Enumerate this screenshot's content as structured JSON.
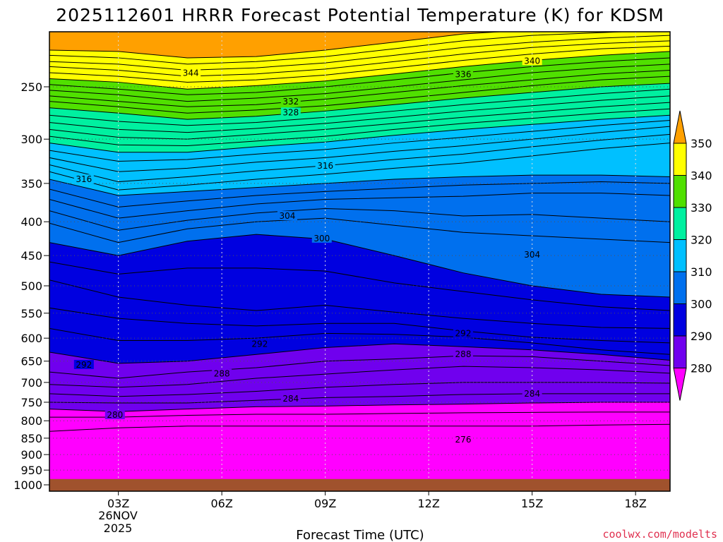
{
  "chart_data": {
    "type": "contour",
    "title": "2025112601 HRRR Forecast Potential Temperature (K) for KDSM",
    "xlabel": "Forecast Time (UTC)",
    "ylabel": "",
    "credit": "coolwx.com/modelts",
    "x_ticks": [
      {
        "label": "03Z",
        "hour": 3
      },
      {
        "label": "06Z",
        "hour": 6
      },
      {
        "label": "09Z",
        "hour": 9
      },
      {
        "label": "12Z",
        "hour": 12
      },
      {
        "label": "15Z",
        "hour": 15
      },
      {
        "label": "18Z",
        "hour": 18
      }
    ],
    "x_date_label": [
      "26NOV",
      "2025"
    ],
    "x_range_hours": [
      1,
      19
    ],
    "y_ticks_hpa": [
      250,
      300,
      350,
      400,
      450,
      500,
      550,
      600,
      650,
      700,
      750,
      800,
      850,
      900,
      950,
      1000
    ],
    "y_range_hpa": [
      200,
      1000
    ],
    "surface_pressure_hpa": 980,
    "colorbar": {
      "ticks": [
        280,
        290,
        300,
        310,
        320,
        330,
        340,
        350
      ],
      "bins": [
        {
          "range": [
            270,
            280
          ],
          "color": "#ff00ff"
        },
        {
          "range": [
            280,
            290
          ],
          "color": "#7000ee"
        },
        {
          "range": [
            290,
            300
          ],
          "color": "#0000e0"
        },
        {
          "range": [
            300,
            310
          ],
          "color": "#0070ee"
        },
        {
          "range": [
            310,
            320
          ],
          "color": "#00c0ff"
        },
        {
          "range": [
            320,
            330
          ],
          "color": "#00f0a0"
        },
        {
          "range": [
            330,
            340
          ],
          "color": "#50e000"
        },
        {
          "range": [
            340,
            350
          ],
          "color": "#ffff00"
        },
        {
          "range": [
            350,
            360
          ],
          "color": "#ffa000"
        }
      ]
    },
    "contour_interval_k": 2,
    "contour_labels": [
      {
        "value": "344",
        "hour": 5.1,
        "p": 239
      },
      {
        "value": "340",
        "hour": 15.0,
        "p": 229
      },
      {
        "value": "336",
        "hour": 13.0,
        "p": 240
      },
      {
        "value": "332",
        "hour": 8.0,
        "p": 264
      },
      {
        "value": "328",
        "hour": 8.0,
        "p": 274
      },
      {
        "value": "316",
        "hour": 9.0,
        "p": 330
      },
      {
        "value": "316",
        "hour": 2.0,
        "p": 346
      },
      {
        "value": "304",
        "hour": 7.9,
        "p": 393
      },
      {
        "value": "300",
        "hour": 8.9,
        "p": 425
      },
      {
        "value": "304",
        "hour": 15.0,
        "p": 450
      },
      {
        "value": "292",
        "hour": 13.0,
        "p": 592
      },
      {
        "value": "292",
        "hour": 7.1,
        "p": 614
      },
      {
        "value": "292",
        "hour": 2.0,
        "p": 660
      },
      {
        "value": "288",
        "hour": 13.0,
        "p": 636
      },
      {
        "value": "288",
        "hour": 6.0,
        "p": 681
      },
      {
        "value": "284",
        "hour": 15.0,
        "p": 730
      },
      {
        "value": "284",
        "hour": 8.0,
        "p": 743
      },
      {
        "value": "280",
        "hour": 2.9,
        "p": 786
      },
      {
        "value": "276",
        "hour": 13.0,
        "p": 857
      }
    ],
    "isotherms_hpa": {
      "hours": [
        1,
        3,
        5,
        7,
        9,
        11,
        13,
        15,
        17,
        19
      ],
      "levels": [
        {
          "theta": 350,
          "p": [
            220,
            221,
            226,
            225,
            220,
            214,
            208,
            205,
            203,
            201
          ]
        },
        {
          "theta": 348,
          "p": [
            224,
            226,
            231,
            229,
            225,
            219,
            213,
            209,
            207,
            205
          ]
        },
        {
          "theta": 346,
          "p": [
            229,
            231,
            236,
            234,
            230,
            224,
            218,
            214,
            211,
            209
          ]
        },
        {
          "theta": 344,
          "p": [
            233,
            236,
            241,
            239,
            235,
            229,
            223,
            218,
            215,
            213
          ]
        },
        {
          "theta": 342,
          "p": [
            238,
            241,
            246,
            244,
            240,
            234,
            228,
            223,
            219,
            217
          ]
        },
        {
          "theta": 340,
          "p": [
            243,
            246,
            252,
            249,
            245,
            239,
            233,
            228,
            224,
            221
          ]
        },
        {
          "theta": 338,
          "p": [
            248,
            252,
            257,
            255,
            250,
            244,
            238,
            233,
            229,
            226
          ]
        },
        {
          "theta": 336,
          "p": [
            253,
            257,
            263,
            260,
            256,
            250,
            244,
            238,
            234,
            231
          ]
        },
        {
          "theta": 334,
          "p": [
            258,
            263,
            268,
            266,
            261,
            255,
            249,
            244,
            239,
            236
          ]
        },
        {
          "theta": 332,
          "p": [
            263,
            268,
            274,
            271,
            267,
            261,
            255,
            249,
            244,
            241
          ]
        },
        {
          "theta": 330,
          "p": [
            269,
            274,
            280,
            277,
            272,
            266,
            260,
            255,
            250,
            247
          ]
        },
        {
          "theta": 328,
          "p": [
            276,
            282,
            286,
            283,
            278,
            272,
            266,
            261,
            256,
            252
          ]
        },
        {
          "theta": 326,
          "p": [
            283,
            290,
            293,
            289,
            284,
            278,
            272,
            267,
            262,
            258
          ]
        },
        {
          "theta": 324,
          "p": [
            290,
            298,
            300,
            295,
            290,
            284,
            278,
            273,
            268,
            264
          ]
        },
        {
          "theta": 322,
          "p": [
            297,
            306,
            307,
            302,
            297,
            290,
            284,
            279,
            274,
            270
          ]
        },
        {
          "theta": 320,
          "p": [
            304,
            314,
            314,
            308,
            303,
            296,
            290,
            285,
            280,
            276
          ]
        },
        {
          "theta": 318,
          "p": [
            312,
            324,
            322,
            316,
            311,
            304,
            298,
            292,
            286,
            281
          ]
        },
        {
          "theta": 316,
          "p": [
            320,
            336,
            332,
            325,
            320,
            313,
            307,
            300,
            293,
            287
          ]
        },
        {
          "theta": 314,
          "p": [
            328,
            348,
            342,
            335,
            329,
            322,
            316,
            308,
            301,
            295
          ]
        },
        {
          "theta": 312,
          "p": [
            336,
            358,
            352,
            345,
            339,
            332,
            326,
            318,
            310,
            304
          ]
        },
        {
          "theta": 310,
          "p": [
            345,
            365,
            360,
            355,
            350,
            345,
            342,
            340,
            340,
            342
          ]
        },
        {
          "theta": 308,
          "p": [
            357,
            380,
            372,
            365,
            360,
            356,
            352,
            350,
            348,
            350
          ]
        },
        {
          "theta": 306,
          "p": [
            370,
            395,
            385,
            376,
            370,
            368,
            366,
            362,
            362,
            365
          ]
        },
        {
          "theta": 304,
          "p": [
            385,
            412,
            398,
            388,
            382,
            385,
            392,
            390,
            395,
            400
          ]
        },
        {
          "theta": 302,
          "p": [
            402,
            430,
            410,
            400,
            395,
            405,
            415,
            420,
            425,
            430
          ]
        },
        {
          "theta": 300,
          "p": [
            430,
            450,
            428,
            418,
            425,
            450,
            478,
            500,
            515,
            520
          ]
        },
        {
          "theta": 298,
          "p": [
            460,
            480,
            470,
            470,
            475,
            495,
            510,
            525,
            538,
            545
          ]
        },
        {
          "theta": 296,
          "p": [
            490,
            520,
            535,
            545,
            535,
            548,
            560,
            570,
            578,
            580
          ]
        },
        {
          "theta": 294,
          "p": [
            540,
            560,
            570,
            575,
            570,
            570,
            585,
            598,
            605,
            610
          ]
        },
        {
          "theta": 292,
          "p": [
            580,
            605,
            605,
            600,
            590,
            592,
            598,
            610,
            625,
            635
          ]
        },
        {
          "theta": 290,
          "p": [
            630,
            655,
            650,
            635,
            620,
            612,
            618,
            625,
            635,
            648
          ]
        },
        {
          "theta": 288,
          "p": [
            675,
            690,
            675,
            665,
            650,
            645,
            638,
            640,
            650,
            660
          ]
        },
        {
          "theta": 286,
          "p": [
            705,
            712,
            705,
            690,
            680,
            670,
            662,
            665,
            670,
            678
          ]
        },
        {
          "theta": 284,
          "p": [
            728,
            735,
            730,
            722,
            712,
            705,
            700,
            700,
            700,
            702
          ]
        },
        {
          "theta": 282,
          "p": [
            750,
            752,
            752,
            745,
            738,
            735,
            730,
            728,
            728,
            728
          ]
        },
        {
          "theta": 280,
          "p": [
            768,
            775,
            768,
            762,
            760,
            757,
            755,
            752,
            750,
            750
          ]
        },
        {
          "theta": 278,
          "p": [
            790,
            790,
            785,
            782,
            782,
            780,
            778,
            777,
            776,
            776
          ]
        },
        {
          "theta": 276,
          "p": [
            830,
            820,
            815,
            815,
            815,
            815,
            815,
            815,
            812,
            810
          ]
        }
      ]
    }
  }
}
